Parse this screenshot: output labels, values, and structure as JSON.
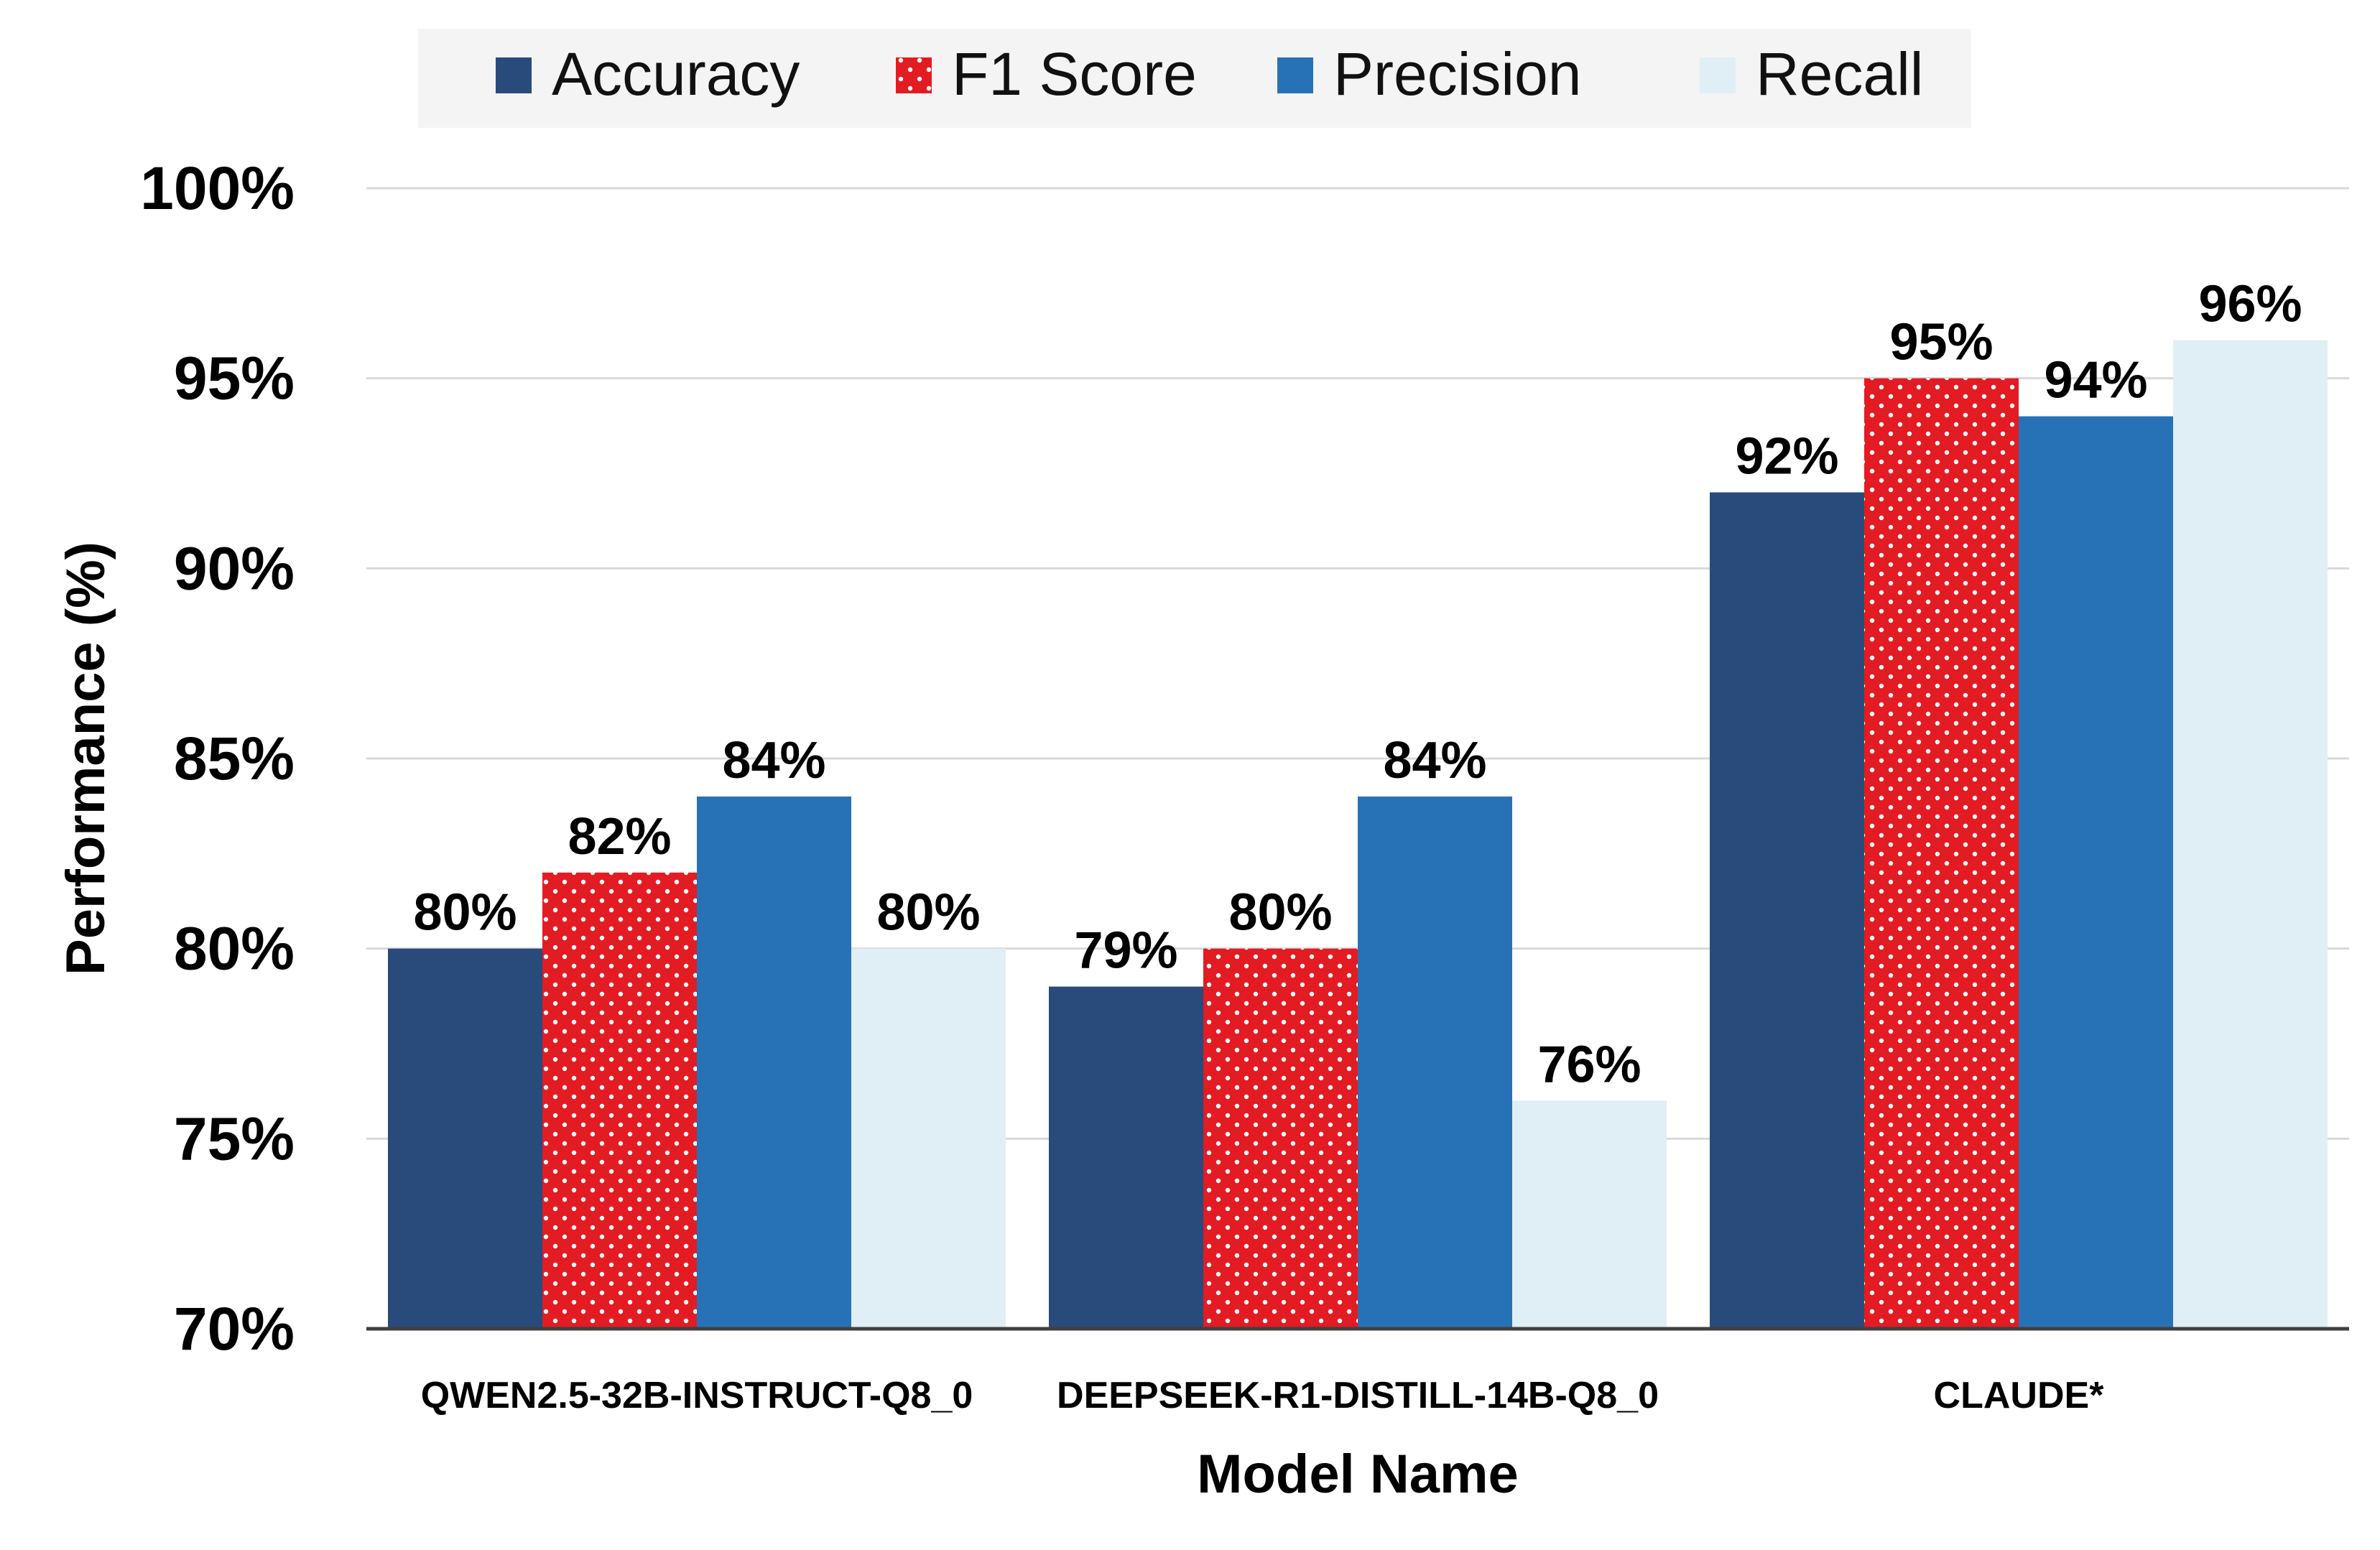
{
  "chart_data": {
    "type": "bar",
    "categories": [
      "QWEN2.5-32B-INSTRUCT-Q8_0",
      "DEEPSEEK-R1-DISTILL-14B-Q8_0",
      "CLAUDE*"
    ],
    "series": [
      {
        "name": "Accuracy",
        "values": [
          80,
          79,
          92
        ],
        "labels": [
          "80%",
          "79%",
          "92%"
        ]
      },
      {
        "name": "F1 Score",
        "values": [
          82,
          80,
          95
        ],
        "labels": [
          "82%",
          "80%",
          "95%"
        ]
      },
      {
        "name": "Precision",
        "values": [
          84,
          84,
          94
        ],
        "labels": [
          "84%",
          "84%",
          "94%"
        ]
      },
      {
        "name": "Recall",
        "values": [
          80,
          76,
          96
        ],
        "labels": [
          "80%",
          "76%",
          "96%"
        ]
      }
    ],
    "title": "",
    "xlabel": "Model Name",
    "ylabel": "Performance (%)",
    "ylim": [
      70,
      100
    ],
    "yticks": [
      70,
      75,
      80,
      85,
      90,
      95,
      100
    ],
    "ytick_labels": [
      "70%",
      "75%",
      "80%",
      "85%",
      "90%",
      "95%",
      "100%"
    ],
    "grid": true,
    "legend_position": "top"
  },
  "colors": {
    "Accuracy": "#284b7c",
    "F1 Score": "#e31b23",
    "Precision": "#2772b7",
    "Recall": "#e0eff5",
    "dot": "#ffffff",
    "grid": "#d9d9d9",
    "axis": "#404040",
    "legend_bg": "#f4f4f4"
  }
}
